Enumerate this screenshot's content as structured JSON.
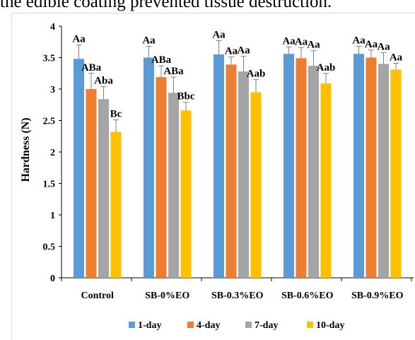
{
  "page_text": "the edible coating prevented tissue destruction.",
  "colors": [
    "#5b9bd5",
    "#ed7d31",
    "#a5a5a5",
    "#ffc000"
  ],
  "chart_data": {
    "type": "bar",
    "title": "",
    "xlabel": "",
    "ylabel": "Hardness (N)",
    "ylim": [
      0,
      4
    ],
    "yticks": [
      "0",
      "0.5",
      "1",
      "1.5",
      "2",
      "2.5",
      "3",
      "3.5",
      "4"
    ],
    "grid": false,
    "legend_position": "bottom",
    "categories": [
      "Control",
      "SB-0%EO",
      "SB-0.3%EO",
      "SB-0.6%EO",
      "SB-0.9%EO"
    ],
    "series": [
      {
        "name": "1-day",
        "values": [
          3.48,
          3.5,
          3.55,
          3.56,
          3.56
        ],
        "errors": [
          0.22,
          0.18,
          0.22,
          0.11,
          0.12
        ],
        "labels": [
          "Aa",
          "Aa",
          "Aa",
          "Aa",
          "Aa"
        ]
      },
      {
        "name": "4-day",
        "values": [
          3.0,
          3.19,
          3.39,
          3.49,
          3.5
        ],
        "errors": [
          0.25,
          0.18,
          0.12,
          0.17,
          0.12
        ],
        "labels": [
          "ABa",
          "ABa",
          "Aa",
          "Aa",
          "Aa"
        ]
      },
      {
        "name": "7-day",
        "values": [
          2.84,
          2.94,
          3.28,
          3.37,
          3.4
        ],
        "errors": [
          0.2,
          0.25,
          0.24,
          0.24,
          0.18
        ],
        "labels": [
          "Aba",
          "ABa",
          "Aa",
          "Aa",
          "Aa"
        ]
      },
      {
        "name": "10-day",
        "values": [
          2.32,
          2.66,
          2.95,
          3.09,
          3.31
        ],
        "errors": [
          0.19,
          0.13,
          0.2,
          0.16,
          0.1
        ],
        "labels": [
          "Bc",
          "Bbc",
          "Aab",
          "Aab",
          "Aa"
        ]
      }
    ]
  }
}
